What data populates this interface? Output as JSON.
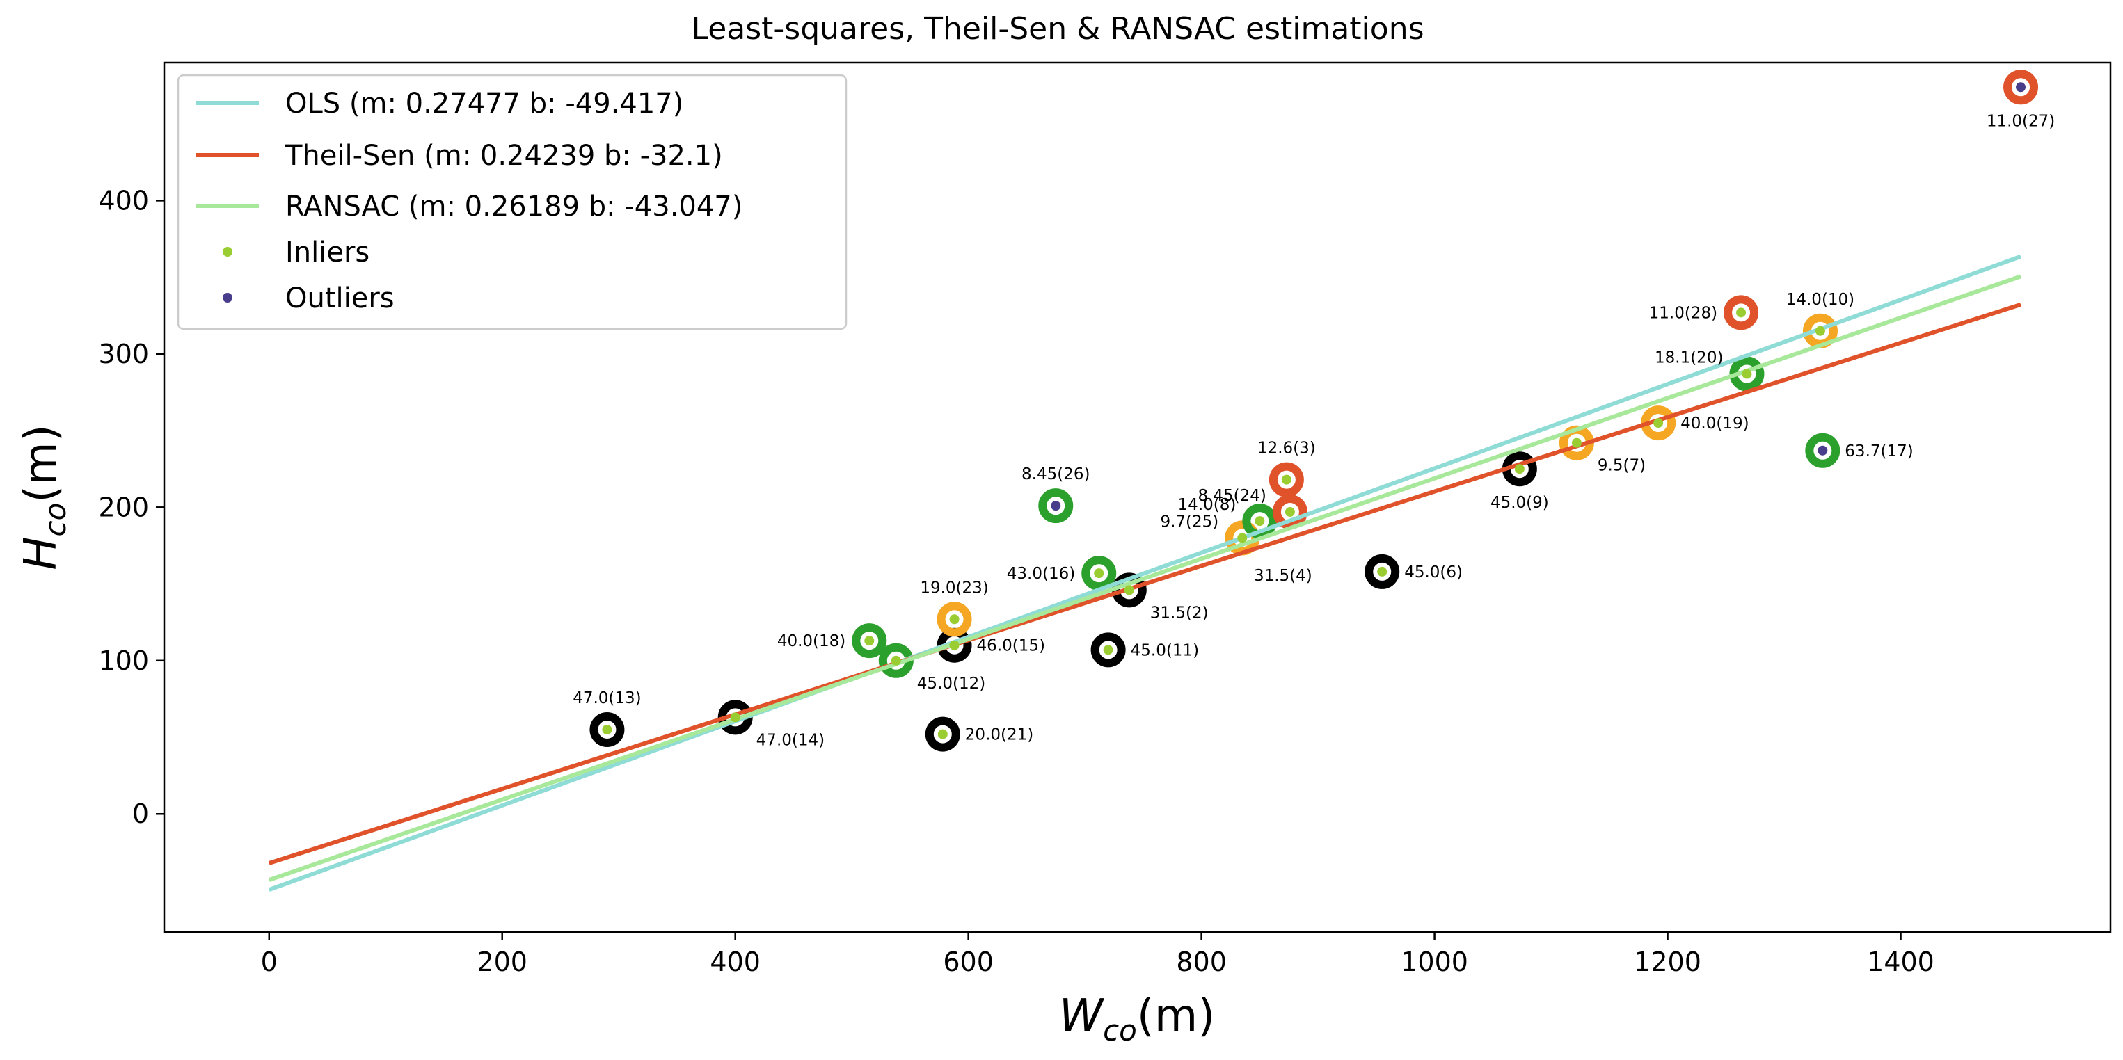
{
  "chart_data": {
    "type": "scatter",
    "title": "Least-squares, Theil-Sen & RANSAC estimations",
    "xlabel": {
      "main": "W",
      "sub": "co",
      "unit": "(m)"
    },
    "ylabel": {
      "main": "H",
      "sub": "co",
      "unit": "(m)"
    },
    "xlim": [
      -90,
      1580
    ],
    "ylim": [
      -77,
      490
    ],
    "xticks": [
      0,
      200,
      400,
      600,
      800,
      1000,
      1200,
      1400
    ],
    "yticks": [
      0,
      100,
      200,
      300,
      400
    ],
    "grid": false,
    "legend_position": "top-left",
    "lines": [
      {
        "name": "OLS",
        "label": "OLS (m: 0.27477  b: -49.417)",
        "m": 0.27477,
        "b": -49.417,
        "x_range": [
          0,
          1503
        ],
        "color": "#8fdcd6"
      },
      {
        "name": "Theil-Sen",
        "label": "Theil-Sen (m: 0.24239  b: -32.1)",
        "m": 0.24239,
        "b": -32.1,
        "x_range": [
          0,
          1503
        ],
        "color": "#e0522a"
      },
      {
        "name": "RANSAC",
        "label": "RANSAC (m: 0.26189  b: -43.047)",
        "m": 0.26189,
        "b": -43.047,
        "x_range": [
          0,
          1503
        ],
        "color": "#a8e89a"
      }
    ],
    "inlier_color": "#9acd32",
    "outlier_color": "#483d8b",
    "legend_markers": [
      {
        "label": "Inliers",
        "color": "#9acd32"
      },
      {
        "label": "Outliers",
        "color": "#483d8b"
      }
    ],
    "ring_colors": {
      "black": "#000000",
      "green": "#2ca02c",
      "orange": "#f5a623",
      "red": "#e0522a"
    },
    "points": [
      {
        "x": 290,
        "y": 55,
        "label": "47.0(13)",
        "ring": "black",
        "inlier": true,
        "label_pos": "above"
      },
      {
        "x": 400,
        "y": 63,
        "label": "47.0(14)",
        "ring": "black",
        "inlier": true,
        "label_pos": "below-right"
      },
      {
        "x": 515,
        "y": 113,
        "label": "40.0(18)",
        "ring": "green",
        "inlier": true,
        "label_pos": "left"
      },
      {
        "x": 538,
        "y": 100,
        "label": "45.0(12)",
        "ring": "green",
        "inlier": true,
        "label_pos": "below-right"
      },
      {
        "x": 578,
        "y": 52,
        "label": "20.0(21)",
        "ring": "black",
        "inlier": true,
        "label_pos": "right"
      },
      {
        "x": 588,
        "y": 110,
        "label": "46.0(15)",
        "ring": "black",
        "inlier": true,
        "label_pos": "right"
      },
      {
        "x": 588,
        "y": 127,
        "label": "19.0(23)",
        "ring": "orange",
        "inlier": true,
        "label_pos": "above"
      },
      {
        "x": 675,
        "y": 201,
        "label": "8.45(26)",
        "ring": "green",
        "inlier": false,
        "label_pos": "above"
      },
      {
        "x": 712,
        "y": 157,
        "label": "43.0(16)",
        "ring": "green",
        "inlier": true,
        "label_pos": "left"
      },
      {
        "x": 720,
        "y": 107,
        "label": "45.0(11)",
        "ring": "black",
        "inlier": true,
        "label_pos": "right"
      },
      {
        "x": 738,
        "y": 146,
        "label": "31.5(2)",
        "ring": "black",
        "inlier": true,
        "label_pos": "below-right"
      },
      {
        "x": 835,
        "y": 180,
        "label": "9.7(25)",
        "ring": "orange",
        "inlier": true,
        "label_pos": "upper-left"
      },
      {
        "x": 850,
        "y": 191,
        "label": "14.0(8)",
        "ring": "green",
        "inlier": true,
        "label_pos": "upper-left"
      },
      {
        "x": 873,
        "y": 218,
        "label": "12.6(3)",
        "ring": "red",
        "inlier": true,
        "label_pos": "above"
      },
      {
        "x": 876,
        "y": 197,
        "label": "8.45(24)",
        "ring": "red",
        "inlier": true,
        "label_pos": "upper-left"
      },
      {
        "x": 870,
        "y": 172,
        "label": "31.5(4)",
        "ring": "black",
        "inlier": true,
        "label_pos": "below",
        "hidden": true
      },
      {
        "x": 955,
        "y": 158,
        "label": "45.0(6)",
        "ring": "black",
        "inlier": true,
        "label_pos": "right"
      },
      {
        "x": 1073,
        "y": 225,
        "label": "45.0(9)",
        "ring": "black",
        "inlier": true,
        "label_pos": "below"
      },
      {
        "x": 1122,
        "y": 242,
        "label": "9.5(7)",
        "ring": "orange",
        "inlier": true,
        "label_pos": "below-right"
      },
      {
        "x": 1192,
        "y": 255,
        "label": "40.0(19)",
        "ring": "orange",
        "inlier": true,
        "label_pos": "right"
      },
      {
        "x": 1263,
        "y": 327,
        "label": "11.0(28)",
        "ring": "red",
        "inlier": true,
        "label_pos": "left"
      },
      {
        "x": 1268,
        "y": 287,
        "label": "18.1(20)",
        "ring": "green",
        "inlier": true,
        "label_pos": "upper-left"
      },
      {
        "x": 1331,
        "y": 315,
        "label": "14.0(10)",
        "ring": "orange",
        "inlier": true,
        "label_pos": "above"
      },
      {
        "x": 1333,
        "y": 237,
        "label": "63.7(17)",
        "ring": "green",
        "inlier": false,
        "label_pos": "right"
      },
      {
        "x": 1503,
        "y": 474,
        "label": "11.0(27)",
        "ring": "red",
        "inlier": false,
        "label_pos": "below"
      }
    ]
  }
}
